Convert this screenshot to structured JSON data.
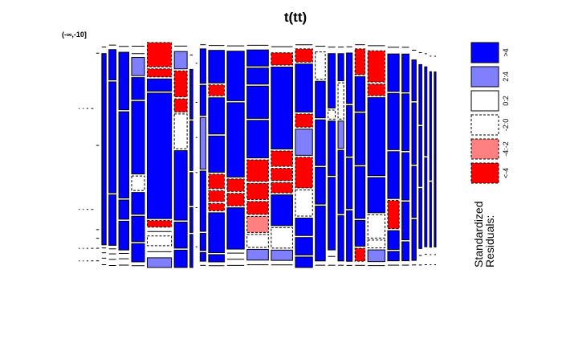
{
  "chart_data": {
    "type": "mosaic",
    "title": "t(tt)",
    "top_label_text": "(-∞,-10]",
    "legend": {
      "title": "Standardized\nResiduals:",
      "entries": [
        {
          "label": ">4",
          "fill": "#0000ff",
          "dash": false
        },
        {
          "label": "2:4",
          "fill": "#8080ff",
          "dash": false
        },
        {
          "label": "0:2",
          "fill": "#ffffff",
          "dash": false
        },
        {
          "label": "-2:0",
          "fill": "#ffffff",
          "dash": true
        },
        {
          "label": "-4:-2",
          "fill": "#ff8080",
          "dash": true
        },
        {
          "label": "<-4",
          "fill": "#ff0000",
          "dash": true
        }
      ]
    },
    "residual_classes": [
      "<-4",
      "-4:-2",
      "-2:0",
      "0:2",
      "2:4",
      ">4"
    ],
    "columns": [
      {
        "w": 0.4,
        "cells": [
          [
            50,
            "z"
          ],
          [
            25,
            "z"
          ],
          [
            3,
            "z"
          ],
          [
            5,
            "z"
          ]
        ]
      },
      {
        "w": 0.4,
        "cells": [
          [
            50,
            "z"
          ],
          [
            25,
            "z"
          ],
          [
            3,
            "z"
          ],
          [
            5,
            "z"
          ]
        ]
      },
      {
        "w": 0.6,
        "cells": [
          [
            50,
            "z"
          ],
          [
            25,
            "z"
          ],
          [
            3,
            "z"
          ],
          [
            5,
            "z"
          ]
        ]
      },
      {
        "w": 0.8,
        "cells": [
          [
            50,
            "z"
          ],
          [
            25,
            "z"
          ],
          [
            3,
            "z"
          ],
          [
            5,
            "z"
          ]
        ]
      },
      {
        "w": 1.0,
        "cells": [
          [
            8,
            "z"
          ],
          [
            60,
            "z"
          ],
          [
            2,
            "z"
          ],
          [
            3,
            "z"
          ],
          [
            3,
            "z"
          ],
          [
            5,
            "z"
          ]
        ]
      },
      {
        "w": 1.5,
        "cells": [
          [
            8,
            "z"
          ],
          [
            170,
            "p4"
          ],
          [
            2,
            "z"
          ],
          [
            3,
            "z"
          ],
          [
            3,
            "z"
          ],
          [
            5,
            "z"
          ]
        ]
      },
      {
        "w": 2.5,
        "cells": [
          [
            5,
            "z"
          ],
          [
            30,
            "p4"
          ],
          [
            110,
            "p4"
          ],
          [
            50,
            "p4"
          ],
          [
            3,
            "z"
          ],
          [
            3,
            "z"
          ],
          [
            4,
            "z"
          ],
          [
            4,
            "z"
          ]
        ]
      },
      {
        "w": 3.5,
        "cells": [
          [
            8,
            "z"
          ],
          [
            60,
            "p4"
          ],
          [
            90,
            "p4"
          ],
          [
            20,
            "p4"
          ],
          [
            30,
            "p4"
          ],
          [
            3,
            "z"
          ],
          [
            4,
            "z"
          ],
          [
            5,
            "z"
          ]
        ]
      },
      {
        "w": 4.5,
        "cells": [
          [
            10,
            "z"
          ],
          [
            5,
            "z"
          ],
          [
            25,
            "p2"
          ],
          [
            30,
            "p4"
          ],
          [
            100,
            "p4"
          ],
          [
            20,
            "n0"
          ],
          [
            30,
            "p4"
          ],
          [
            35,
            "p4"
          ],
          [
            25,
            "p4"
          ],
          [
            5,
            "z"
          ]
        ]
      },
      {
        "w": 8.5,
        "cells": [
          [
            30,
            "n4"
          ],
          [
            10,
            "n4"
          ],
          [
            15,
            "p4"
          ],
          [
            155,
            "p4"
          ],
          [
            8,
            "n4"
          ],
          [
            6,
            "z"
          ],
          [
            12,
            "n0"
          ],
          [
            10,
            "z"
          ],
          [
            12,
            "p2"
          ]
        ]
      },
      {
        "w": 4.5,
        "cells": [
          [
            8,
            "z"
          ],
          [
            20,
            "p2"
          ],
          [
            30,
            "n4"
          ],
          [
            15,
            "n4"
          ],
          [
            40,
            "n0"
          ],
          [
            80,
            "p4"
          ],
          [
            30,
            "p4"
          ],
          [
            20,
            "p4"
          ]
        ]
      },
      {
        "w": 1.0,
        "cells": [
          [
            30,
            "z"
          ],
          [
            60,
            "p4"
          ],
          [
            60,
            "p4"
          ],
          [
            40,
            "p4"
          ],
          [
            30,
            "p4"
          ],
          [
            40,
            "p4"
          ]
        ]
      },
      {
        "w": 0.6,
        "cells": [
          [
            50,
            "z"
          ],
          [
            40,
            "z"
          ],
          [
            40,
            "z"
          ],
          [
            40,
            "z"
          ],
          [
            40,
            "z"
          ],
          [
            50,
            "z"
          ]
        ]
      },
      {
        "w": 2.0,
        "cells": [
          [
            5,
            "z"
          ],
          [
            40,
            "p4"
          ],
          [
            35,
            "p4"
          ],
          [
            60,
            "p2"
          ],
          [
            70,
            "p4"
          ],
          [
            20,
            "p4"
          ],
          [
            10,
            "p4"
          ],
          [
            5,
            "z"
          ]
        ]
      },
      {
        "w": 5.5,
        "cells": [
          [
            8,
            "z"
          ],
          [
            45,
            "p4"
          ],
          [
            15,
            "n4"
          ],
          [
            50,
            "p4"
          ],
          [
            50,
            "p4"
          ],
          [
            20,
            "n4"
          ],
          [
            15,
            "n4"
          ],
          [
            10,
            "n4"
          ],
          [
            55,
            "p4"
          ],
          [
            10,
            "p4"
          ],
          [
            5,
            "z"
          ]
        ]
      },
      {
        "w": 6.0,
        "cells": [
          [
            8,
            "z"
          ],
          [
            60,
            "p4"
          ],
          [
            90,
            "p4"
          ],
          [
            15,
            "n4"
          ],
          [
            15,
            "n4"
          ],
          [
            50,
            "p4"
          ],
          [
            5,
            "z"
          ],
          [
            5,
            "z"
          ],
          [
            5,
            "z"
          ]
        ]
      },
      {
        "w": 7.5,
        "cells": [
          [
            5,
            "z"
          ],
          [
            15,
            "p4"
          ],
          [
            15,
            "p4"
          ],
          [
            30,
            "p4"
          ],
          [
            35,
            "p4"
          ],
          [
            20,
            "n4"
          ],
          [
            15,
            "n4"
          ],
          [
            12,
            "n4"
          ],
          [
            15,
            "n2"
          ],
          [
            12,
            "n0"
          ],
          [
            10,
            "p2"
          ],
          [
            5,
            "z"
          ]
        ]
      },
      {
        "w": 7.5,
        "cells": [
          [
            8,
            "z"
          ],
          [
            12,
            "n4"
          ],
          [
            80,
            "p4"
          ],
          [
            15,
            "n4"
          ],
          [
            12,
            "n4"
          ],
          [
            10,
            "n4"
          ],
          [
            30,
            "p4"
          ],
          [
            20,
            "n0"
          ],
          [
            10,
            "p2"
          ],
          [
            5,
            "z"
          ]
        ]
      },
      {
        "w": 6.0,
        "cells": [
          [
            5,
            "z"
          ],
          [
            15,
            "n4"
          ],
          [
            55,
            "p4"
          ],
          [
            15,
            "n4"
          ],
          [
            30,
            "p2"
          ],
          [
            35,
            "n4"
          ],
          [
            30,
            "n0"
          ],
          [
            20,
            "p4"
          ],
          [
            20,
            "p4"
          ],
          [
            12,
            "p4"
          ]
        ]
      },
      {
        "w": 3.5,
        "cells": [
          [
            8,
            "z"
          ],
          [
            30,
            "n0"
          ],
          [
            40,
            "p4"
          ],
          [
            50,
            "p4"
          ],
          [
            40,
            "p4"
          ],
          [
            60,
            "p4"
          ],
          [
            5,
            "z"
          ]
        ]
      },
      {
        "w": 2.5,
        "cells": [
          [
            10,
            "z"
          ],
          [
            60,
            "p4"
          ],
          [
            10,
            "n0"
          ],
          [
            60,
            "p4"
          ],
          [
            80,
            "p4"
          ],
          [
            10,
            "z"
          ],
          [
            5,
            "z"
          ]
        ]
      },
      {
        "w": 2.0,
        "cells": [
          [
            10,
            "z"
          ],
          [
            30,
            "p4"
          ],
          [
            40,
            "n0"
          ],
          [
            30,
            "p2"
          ],
          [
            70,
            "p4"
          ],
          [
            50,
            "p4"
          ],
          [
            5,
            "z"
          ]
        ]
      },
      {
        "w": 2.0,
        "cells": [
          [
            10,
            "z"
          ],
          [
            60,
            "p4"
          ],
          [
            60,
            "p4"
          ],
          [
            60,
            "p4"
          ],
          [
            60,
            "p4"
          ],
          [
            5,
            "z"
          ]
        ]
      },
      {
        "w": 3.5,
        "cells": [
          [
            5,
            "z"
          ],
          [
            30,
            "n4"
          ],
          [
            40,
            "p4"
          ],
          [
            60,
            "p4"
          ],
          [
            60,
            "p4"
          ],
          [
            30,
            "p4"
          ],
          [
            15,
            "n4"
          ],
          [
            5,
            "z"
          ]
        ]
      },
      {
        "w": 6.0,
        "cells": [
          [
            8,
            "z"
          ],
          [
            40,
            "n4"
          ],
          [
            15,
            "n4"
          ],
          [
            100,
            "p4"
          ],
          [
            45,
            "p4"
          ],
          [
            30,
            "n0"
          ],
          [
            10,
            "n0"
          ],
          [
            15,
            "p2"
          ],
          [
            5,
            "z"
          ]
        ]
      },
      {
        "w": 4.0,
        "cells": [
          [
            10,
            "z"
          ],
          [
            40,
            "p4"
          ],
          [
            60,
            "p4"
          ],
          [
            50,
            "p4"
          ],
          [
            30,
            "n4"
          ],
          [
            20,
            "p4"
          ],
          [
            10,
            "p4"
          ],
          [
            5,
            "z"
          ]
        ]
      },
      {
        "w": 2.5,
        "cells": [
          [
            10,
            "z"
          ],
          [
            40,
            "p4"
          ],
          [
            60,
            "p4"
          ],
          [
            50,
            "p4"
          ],
          [
            40,
            "p4"
          ],
          [
            20,
            "p4"
          ],
          [
            5,
            "z"
          ]
        ]
      },
      {
        "w": 1.5,
        "cells": [
          [
            15,
            "z"
          ],
          [
            40,
            "p4"
          ],
          [
            60,
            "p4"
          ],
          [
            50,
            "p4"
          ],
          [
            40,
            "p4"
          ],
          [
            5,
            "z"
          ]
        ]
      },
      {
        "w": 1.0,
        "cells": [
          [
            20,
            "z"
          ],
          [
            60,
            "p4"
          ],
          [
            60,
            "p4"
          ],
          [
            60,
            "p4"
          ],
          [
            10,
            "z"
          ],
          [
            5,
            "z"
          ]
        ]
      },
      {
        "w": 0.8,
        "cells": [
          [
            20,
            "z"
          ],
          [
            80,
            "p4"
          ],
          [
            80,
            "p4"
          ],
          [
            10,
            "z"
          ],
          [
            5,
            "z"
          ]
        ]
      },
      {
        "w": 0.6,
        "cells": [
          [
            25,
            "z"
          ],
          [
            100,
            "p4"
          ],
          [
            60,
            "p4"
          ],
          [
            10,
            "z"
          ],
          [
            5,
            "z"
          ]
        ]
      },
      {
        "w": 0.6,
        "cells": [
          [
            25,
            "z"
          ],
          [
            160,
            "p4"
          ],
          [
            10,
            "z"
          ],
          [
            5,
            "z"
          ]
        ]
      }
    ]
  }
}
